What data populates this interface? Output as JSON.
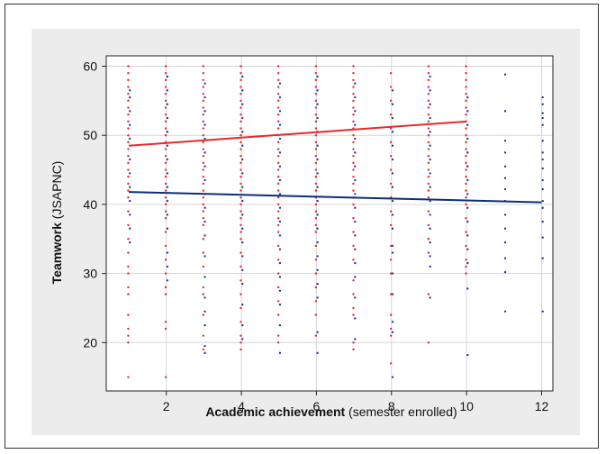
{
  "chart_data": {
    "type": "scatter",
    "xlabel_bold": "Academic achievement",
    "xlabel_rest": " (semester enrolled)",
    "ylabel_bold": "Teamwork",
    "ylabel_rest": "  (JSAPNC)",
    "xlim": [
      0.4,
      12.3
    ],
    "ylim": [
      13,
      61.5
    ],
    "x_ticks": [
      2,
      4,
      6,
      8,
      10,
      12
    ],
    "y_ticks": [
      20,
      30,
      40,
      50,
      60
    ],
    "grid": true,
    "colors": {
      "red": "#e8282b",
      "blue": "#1f3f8f",
      "red_line": "#e8282b",
      "blue_line": "#0b2f7a",
      "background": "#ececec",
      "grid": "#ffffff"
    },
    "series": [
      {
        "color": "red",
        "fit_line": {
          "x": [
            1,
            10
          ],
          "y": [
            48.5,
            52.0
          ]
        },
        "points": [
          {
            "x": 1,
            "y": [
              60,
              59,
              58,
              57,
              56,
              55,
              54,
              53,
              52,
              51,
              50,
              49,
              48,
              47,
              46,
              45,
              44,
              43,
              42,
              41,
              39,
              37,
              35,
              33,
              31,
              30,
              28,
              27,
              24,
              22,
              21,
              20,
              15
            ]
          },
          {
            "x": 2,
            "y": [
              60,
              59,
              58,
              57,
              56,
              55,
              54,
              53,
              52,
              51,
              50,
              49,
              48,
              47,
              46,
              45,
              44,
              43,
              42,
              41,
              40,
              39,
              38,
              36,
              34,
              32,
              30,
              28,
              27,
              23,
              22,
              15
            ]
          },
          {
            "x": 3,
            "y": [
              60,
              59,
              58,
              57,
              56,
              55,
              54,
              53,
              52,
              51,
              50,
              49,
              48,
              47,
              46,
              45,
              44,
              43,
              42,
              41,
              40,
              39,
              38,
              37,
              35,
              33,
              31,
              28,
              27,
              24,
              21,
              19
            ]
          },
          {
            "x": 4,
            "y": [
              60,
              59,
              58,
              57,
              56,
              55,
              54,
              53,
              52,
              51,
              50,
              49,
              48,
              47,
              46,
              45,
              44,
              43,
              42,
              41,
              40,
              39,
              38,
              37,
              36,
              35,
              33,
              31,
              29,
              27,
              25,
              23,
              21,
              20,
              19
            ]
          },
          {
            "x": 5,
            "y": [
              60,
              59,
              58,
              57,
              56,
              55,
              54,
              53,
              52,
              51,
              50,
              49,
              48,
              47,
              46,
              45,
              44,
              43,
              42,
              41,
              40,
              39,
              38,
              37,
              36,
              34,
              32,
              30,
              28,
              26,
              24,
              21,
              20
            ]
          },
          {
            "x": 6,
            "y": [
              60,
              59,
              58,
              57,
              56,
              55,
              54,
              53,
              52,
              51,
              50,
              49,
              48,
              47,
              46,
              45,
              44,
              43,
              42,
              41,
              40,
              39,
              38,
              37,
              36,
              34,
              32,
              30,
              28,
              26,
              24,
              21
            ]
          },
          {
            "x": 7,
            "y": [
              60,
              59,
              58,
              57,
              56,
              55,
              54,
              53,
              52,
              51,
              50,
              49,
              48,
              47,
              46,
              45,
              44,
              43,
              42,
              41,
              40,
              38,
              36,
              34,
              32,
              29,
              27,
              25,
              24,
              20,
              19
            ]
          },
          {
            "x": 8,
            "y": [
              59,
              57,
              55,
              53,
              51,
              49,
              47,
              45,
              43,
              41,
              39,
              37,
              34,
              32,
              30,
              27,
              24,
              22,
              21,
              17
            ]
          },
          {
            "x": 9,
            "y": [
              60,
              59,
              58,
              57,
              56,
              55,
              54,
              53,
              52,
              51,
              50,
              49,
              48,
              47,
              46,
              45,
              44,
              43,
              42,
              41,
              39,
              37,
              35,
              33,
              27,
              20
            ]
          },
          {
            "x": 10,
            "y": [
              60,
              59,
              58,
              57,
              56,
              55,
              54,
              53,
              52,
              51,
              50,
              49,
              48,
              47,
              46,
              45,
              44,
              43,
              42,
              41,
              40,
              38,
              36,
              34,
              32,
              31,
              30
            ]
          }
        ]
      },
      {
        "color": "blue",
        "fit_line": {
          "x": [
            1,
            12
          ],
          "y": [
            41.8,
            40.3
          ]
        },
        "points": [
          {
            "x": 1,
            "y": [
              56.5,
              55.5,
              53.5,
              51.5,
              49.5,
              46.5,
              44.5,
              42.5,
              40.5,
              38.5,
              36.5,
              34.5
            ]
          },
          {
            "x": 2,
            "y": [
              58.5,
              56.5,
              54.5,
              52.5,
              50.5,
              48.5,
              46.5,
              44.5,
              42.5,
              40.5,
              38.5,
              36.5,
              33,
              31,
              29
            ]
          },
          {
            "x": 3,
            "y": [
              57.5,
              55.5,
              53.5,
              51.5,
              49.5,
              47.5,
              45.5,
              43.5,
              41.5,
              39.5,
              37.5,
              35.5,
              32.5,
              29.5,
              26.5,
              24.5,
              22.5,
              19.5,
              18.5
            ]
          },
          {
            "x": 4,
            "y": [
              58.5,
              56.5,
              54.5,
              52.5,
              50.5,
              48.5,
              46.5,
              44.5,
              42.5,
              40.5,
              38.5,
              36.5,
              34.5,
              32.5,
              30.5,
              28.5,
              25.5,
              22.5,
              20.5
            ]
          },
          {
            "x": 5,
            "y": [
              57.5,
              55.5,
              53.5,
              51.5,
              49.5,
              47.5,
              45.5,
              43.5,
              41.5,
              39.5,
              37.5,
              35.5,
              33.5,
              31.5,
              29.5,
              27.5,
              25.5,
              22.5,
              18.5
            ]
          },
          {
            "x": 6,
            "y": [
              58.5,
              56.5,
              54.5,
              52.5,
              50.5,
              48.5,
              46.5,
              44.5,
              42.5,
              40.5,
              38.5,
              36.5,
              34.5,
              32.5,
              30.5,
              28.5,
              26.5,
              21.5,
              18.5
            ]
          },
          {
            "x": 7,
            "y": [
              57.5,
              55.5,
              53.5,
              51.5,
              49.5,
              47.5,
              45.5,
              43.5,
              41.5,
              39.5,
              37.5,
              35.5,
              33.5,
              31.5,
              29.5,
              26.5,
              23.5,
              20.5
            ]
          },
          {
            "x": 8,
            "y": [
              56.5,
              54.5,
              52.5,
              50.5,
              48.5,
              46.5,
              44.5,
              42.5,
              40.5,
              38.5,
              36.5,
              34,
              33,
              30,
              27,
              23,
              21.5,
              15
            ]
          },
          {
            "x": 9,
            "y": [
              58.5,
              56.5,
              54.5,
              52.5,
              50.5,
              48.5,
              46.5,
              44.5,
              42.5,
              40.5,
              38.5,
              36.5,
              34.5,
              32.5,
              31,
              26.5
            ]
          },
          {
            "x": 10,
            "y": [
              55.5,
              53.5,
              51.5,
              49.5,
              47.5,
              45.5,
              43.5,
              41.5,
              39.5,
              37.5,
              35.5,
              33.5,
              31.5,
              27.8,
              18.2
            ]
          },
          {
            "x": 11,
            "y": [
              58.8,
              53.5,
              49.2,
              47.5,
              45.5,
              43.8,
              42.2,
              40.5,
              38.5,
              36.5,
              34.5,
              32.2,
              30.2,
              24.5
            ]
          },
          {
            "x": 12,
            "y": [
              55.5,
              54.5,
              53.2,
              52.5,
              51.5,
              49.2,
              47.5,
              46.5,
              45.2,
              43.5,
              42.2,
              40.5,
              39.5,
              37.5,
              35.2,
              32.2,
              24.5
            ]
          }
        ]
      }
    ]
  }
}
